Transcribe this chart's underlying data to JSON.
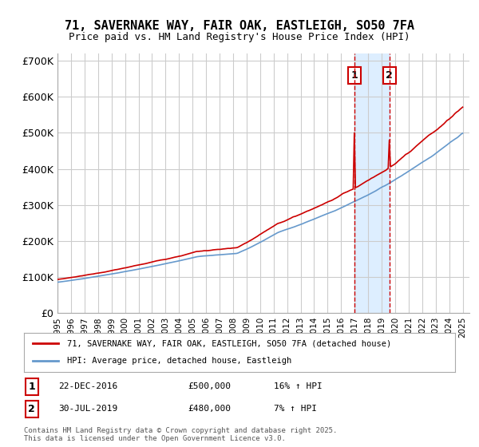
{
  "title": "71, SAVERNAKE WAY, FAIR OAK, EASTLEIGH, SO50 7FA",
  "subtitle": "Price paid vs. HM Land Registry's House Price Index (HPI)",
  "xlabel": "",
  "ylabel": "",
  "ylim": [
    0,
    720000
  ],
  "yticks": [
    0,
    100000,
    200000,
    300000,
    400000,
    500000,
    600000,
    700000
  ],
  "ytick_labels": [
    "£0",
    "£100K",
    "£200K",
    "£300K",
    "£400K",
    "£500K",
    "£600K",
    "£700K"
  ],
  "line1_color": "#cc0000",
  "line2_color": "#6699cc",
  "sale1_date_idx": 22.0,
  "sale1_price": 500000,
  "sale1_label": "1",
  "sale1_info": "22-DEC-2016    £500,000    16% ↑ HPI",
  "sale2_date_idx": 24.5,
  "sale2_price": 480000,
  "sale2_label": "2",
  "sale2_info": "30-JUL-2019    £480,000    7% ↑ HPI",
  "legend1": "71, SAVERNAKE WAY, FAIR OAK, EASTLEIGH, SO50 7FA (detached house)",
  "legend2": "HPI: Average price, detached house, Eastleigh",
  "footnote": "Contains HM Land Registry data © Crown copyright and database right 2025.\nThis data is licensed under the Open Government Licence v3.0.",
  "background_color": "#ffffff",
  "grid_color": "#cccccc",
  "highlight_color": "#ddeeff"
}
